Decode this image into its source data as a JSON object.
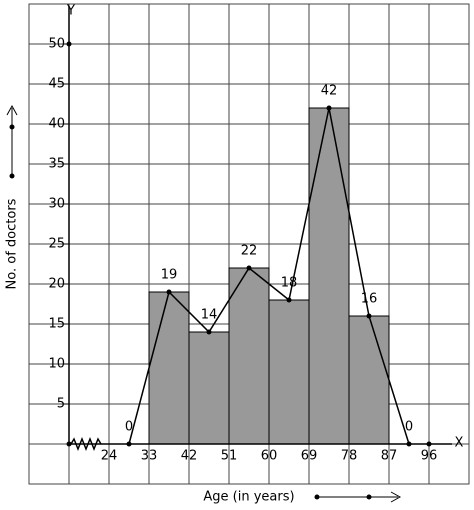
{
  "chart_data": {
    "type": "histogram",
    "x_label": "Age (in years)",
    "y_label": "No. of doctors",
    "x_axis_name": "X",
    "y_axis_name": "Y",
    "bins": [
      33,
      42,
      51,
      60,
      69,
      78,
      87
    ],
    "values": [
      19,
      14,
      22,
      18,
      42,
      16
    ],
    "color": "#999999",
    "polygon": {
      "x": [
        28.5,
        37.5,
        46.5,
        55.5,
        64.5,
        73.5,
        82.5,
        91.5
      ],
      "values": [
        0,
        19,
        14,
        22,
        18,
        42,
        16,
        0
      ]
    },
    "xlim": [
      15,
      105
    ],
    "xticks": [
      24,
      33,
      42,
      51,
      60,
      69,
      78,
      87,
      96
    ],
    "ylim": [
      -5,
      55
    ],
    "yticks": [
      5,
      10,
      15,
      20,
      25,
      30,
      35,
      40,
      45,
      50
    ],
    "grid": true
  }
}
